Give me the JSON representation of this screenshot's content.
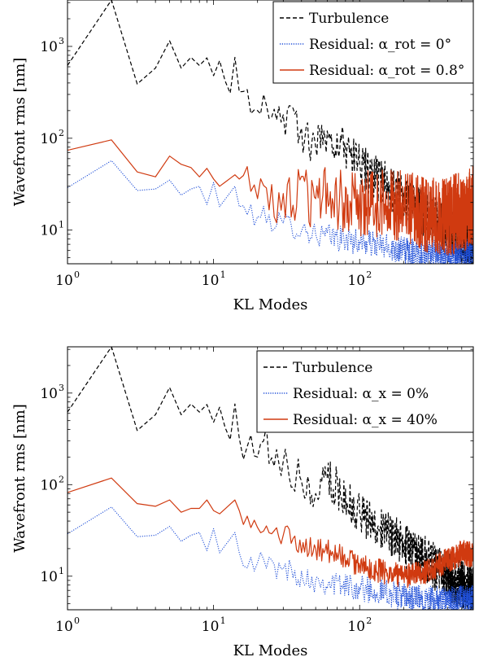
{
  "chart_data": [
    {
      "type": "line",
      "xscale": "log",
      "yscale": "log",
      "xlim": [
        1,
        600
      ],
      "ylim": [
        4.3,
        3200
      ],
      "xlabel": "KL Modes",
      "ylabel": "Wavefront rms [nm]",
      "xticks": [
        {
          "value": 1,
          "base": "10",
          "exp": "0"
        },
        {
          "value": 10,
          "base": "10",
          "exp": "1"
        },
        {
          "value": 100,
          "base": "10",
          "exp": "2"
        }
      ],
      "yticks": [
        {
          "value": 10,
          "base": "10",
          "exp": "1"
        },
        {
          "value": 100,
          "base": "10",
          "exp": "2"
        },
        {
          "value": 1000,
          "base": "10",
          "exp": "3"
        }
      ],
      "legend_position": "top-right",
      "grid": false,
      "series": [
        {
          "name": "Turbulence",
          "color": "#000000",
          "style": "dashed",
          "anchors": [
            [
              1,
              620
            ],
            [
              2,
              3200
            ],
            [
              3,
              390
            ],
            [
              4,
              580
            ],
            [
              5,
              1150
            ],
            [
              6,
              580
            ],
            [
              7,
              760
            ],
            [
              8,
              620
            ],
            [
              9,
              750
            ],
            [
              10,
              480
            ],
            [
              11,
              700
            ],
            [
              12,
              420
            ],
            [
              13,
              310
            ],
            [
              14,
              760
            ],
            [
              15,
              320
            ],
            [
              20,
              200
            ],
            [
              22,
              300
            ],
            [
              30,
              180
            ],
            [
              50,
              80
            ],
            [
              60,
              120
            ],
            [
              100,
              50
            ],
            [
              150,
              32
            ],
            [
              200,
              22
            ],
            [
              300,
              14
            ],
            [
              400,
              10
            ],
            [
              500,
              8
            ],
            [
              600,
              7
            ]
          ],
          "noise": [
            0.12,
            0.28
          ]
        },
        {
          "name": "Residual: α_rot = 0°",
          "color": "#1f4fd8",
          "style": "dotted",
          "anchors": [
            [
              1,
              29
            ],
            [
              2,
              57
            ],
            [
              3,
              27
            ],
            [
              4,
              28
            ],
            [
              5,
              35
            ],
            [
              6,
              24
            ],
            [
              7,
              28
            ],
            [
              8,
              30
            ],
            [
              9,
              19
            ],
            [
              10,
              33
            ],
            [
              11,
              18
            ],
            [
              14,
              30
            ],
            [
              15,
              18
            ],
            [
              20,
              14
            ],
            [
              30,
              12
            ],
            [
              50,
              9
            ],
            [
              100,
              7.5
            ],
            [
              200,
              6
            ],
            [
              300,
              5.5
            ],
            [
              400,
              5.3
            ],
            [
              500,
              5.5
            ],
            [
              600,
              5.8
            ]
          ],
          "noise": [
            0.1,
            0.16
          ]
        },
        {
          "name": "Residual: α_rot = 0.8°",
          "color": "#d03a10",
          "style": "solid",
          "anchors": [
            [
              1,
              74
            ],
            [
              2,
              96
            ],
            [
              3,
              43
            ],
            [
              4,
              38
            ],
            [
              5,
              64
            ],
            [
              6,
              52
            ],
            [
              7,
              48
            ],
            [
              8,
              38
            ],
            [
              9,
              47
            ],
            [
              10,
              36
            ],
            [
              11,
              30
            ],
            [
              14,
              40
            ],
            [
              15,
              36
            ],
            [
              20,
              22
            ],
            [
              30,
              25
            ],
            [
              50,
              22
            ],
            [
              100,
              20
            ],
            [
              200,
              18
            ],
            [
              300,
              14
            ],
            [
              400,
              14
            ],
            [
              500,
              16
            ],
            [
              600,
              18
            ]
          ],
          "noise": [
            0.18,
            0.45
          ]
        }
      ]
    },
    {
      "type": "line",
      "xscale": "log",
      "yscale": "log",
      "xlim": [
        1,
        600
      ],
      "ylim": [
        4.3,
        3200
      ],
      "xlabel": "KL Modes",
      "ylabel": "Wavefront rms [nm]",
      "xticks": [
        {
          "value": 1,
          "base": "10",
          "exp": "0"
        },
        {
          "value": 10,
          "base": "10",
          "exp": "1"
        },
        {
          "value": 100,
          "base": "10",
          "exp": "2"
        }
      ],
      "yticks": [
        {
          "value": 10,
          "base": "10",
          "exp": "1"
        },
        {
          "value": 100,
          "base": "10",
          "exp": "2"
        },
        {
          "value": 1000,
          "base": "10",
          "exp": "3"
        }
      ],
      "legend_position": "top-right",
      "grid": false,
      "series": [
        {
          "name": "Turbulence",
          "color": "#000000",
          "style": "dashed",
          "anchors": [
            [
              1,
              620
            ],
            [
              2,
              3200
            ],
            [
              3,
              390
            ],
            [
              4,
              580
            ],
            [
              5,
              1150
            ],
            [
              6,
              580
            ],
            [
              7,
              760
            ],
            [
              8,
              620
            ],
            [
              9,
              750
            ],
            [
              10,
              480
            ],
            [
              11,
              700
            ],
            [
              12,
              420
            ],
            [
              13,
              310
            ],
            [
              14,
              760
            ],
            [
              15,
              320
            ],
            [
              20,
              200
            ],
            [
              22,
              300
            ],
            [
              30,
              180
            ],
            [
              50,
              80
            ],
            [
              60,
              120
            ],
            [
              100,
              50
            ],
            [
              150,
              32
            ],
            [
              200,
              22
            ],
            [
              300,
              14
            ],
            [
              400,
              10
            ],
            [
              500,
              8
            ],
            [
              600,
              7
            ]
          ],
          "noise": [
            0.12,
            0.28
          ]
        },
        {
          "name": "Residual: α_x = 0%",
          "color": "#1f4fd8",
          "style": "dotted",
          "anchors": [
            [
              1,
              29
            ],
            [
              2,
              57
            ],
            [
              3,
              27
            ],
            [
              4,
              28
            ],
            [
              5,
              35
            ],
            [
              6,
              24
            ],
            [
              7,
              28
            ],
            [
              8,
              30
            ],
            [
              9,
              19
            ],
            [
              10,
              33
            ],
            [
              11,
              18
            ],
            [
              14,
              30
            ],
            [
              15,
              18
            ],
            [
              20,
              14
            ],
            [
              30,
              12
            ],
            [
              50,
              9
            ],
            [
              100,
              7.5
            ],
            [
              200,
              6
            ],
            [
              300,
              5.5
            ],
            [
              400,
              5.3
            ],
            [
              500,
              5.5
            ],
            [
              600,
              5.8
            ]
          ],
          "noise": [
            0.1,
            0.16
          ]
        },
        {
          "name": "Residual: α_x = 40%",
          "color": "#d03a10",
          "style": "solid",
          "anchors": [
            [
              1,
              82
            ],
            [
              2,
              118
            ],
            [
              3,
              62
            ],
            [
              4,
              58
            ],
            [
              5,
              68
            ],
            [
              6,
              50
            ],
            [
              7,
              55
            ],
            [
              8,
              55
            ],
            [
              9,
              68
            ],
            [
              10,
              52
            ],
            [
              11,
              48
            ],
            [
              14,
              68
            ],
            [
              15,
              52
            ],
            [
              20,
              34
            ],
            [
              30,
              28
            ],
            [
              50,
              20
            ],
            [
              70,
              18
            ],
            [
              100,
              13
            ],
            [
              150,
              11
            ],
            [
              200,
              10
            ],
            [
              250,
              10.5
            ],
            [
              300,
              11.5
            ],
            [
              400,
              15
            ],
            [
              500,
              18
            ],
            [
              600,
              17
            ]
          ],
          "noise": [
            0.1,
            0.14
          ]
        }
      ]
    }
  ]
}
